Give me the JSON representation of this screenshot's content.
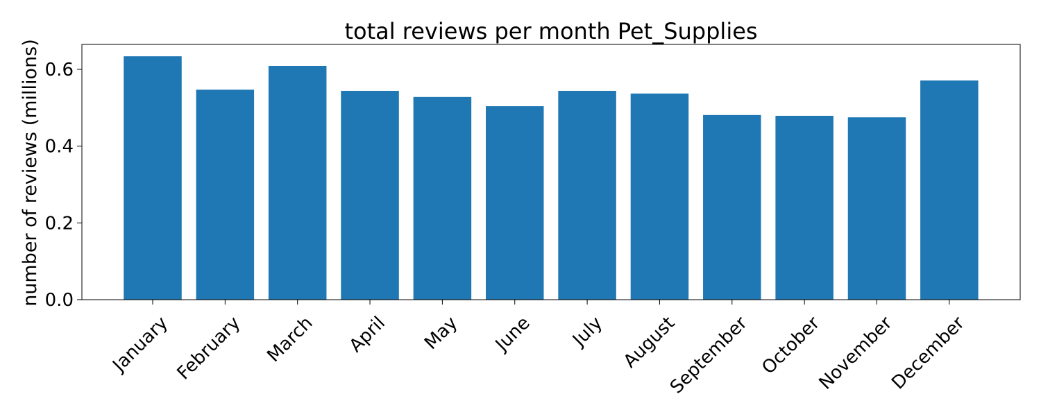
{
  "chart_data": {
    "type": "bar",
    "title": "total reviews per month Pet_Supplies",
    "xlabel": "",
    "ylabel": "number of reviews (millions)",
    "categories": [
      "January",
      "February",
      "March",
      "April",
      "May",
      "June",
      "July",
      "August",
      "September",
      "October",
      "November",
      "December"
    ],
    "values": [
      0.634,
      0.547,
      0.609,
      0.544,
      0.528,
      0.504,
      0.544,
      0.537,
      0.481,
      0.479,
      0.475,
      0.571
    ],
    "ylim": [
      0,
      0.665
    ],
    "yticks": [
      0.0,
      0.2,
      0.4,
      0.6
    ],
    "ytick_labels": [
      "0.0",
      "0.2",
      "0.4",
      "0.6"
    ],
    "grid": false,
    "bar_color": "#1f77b4"
  }
}
